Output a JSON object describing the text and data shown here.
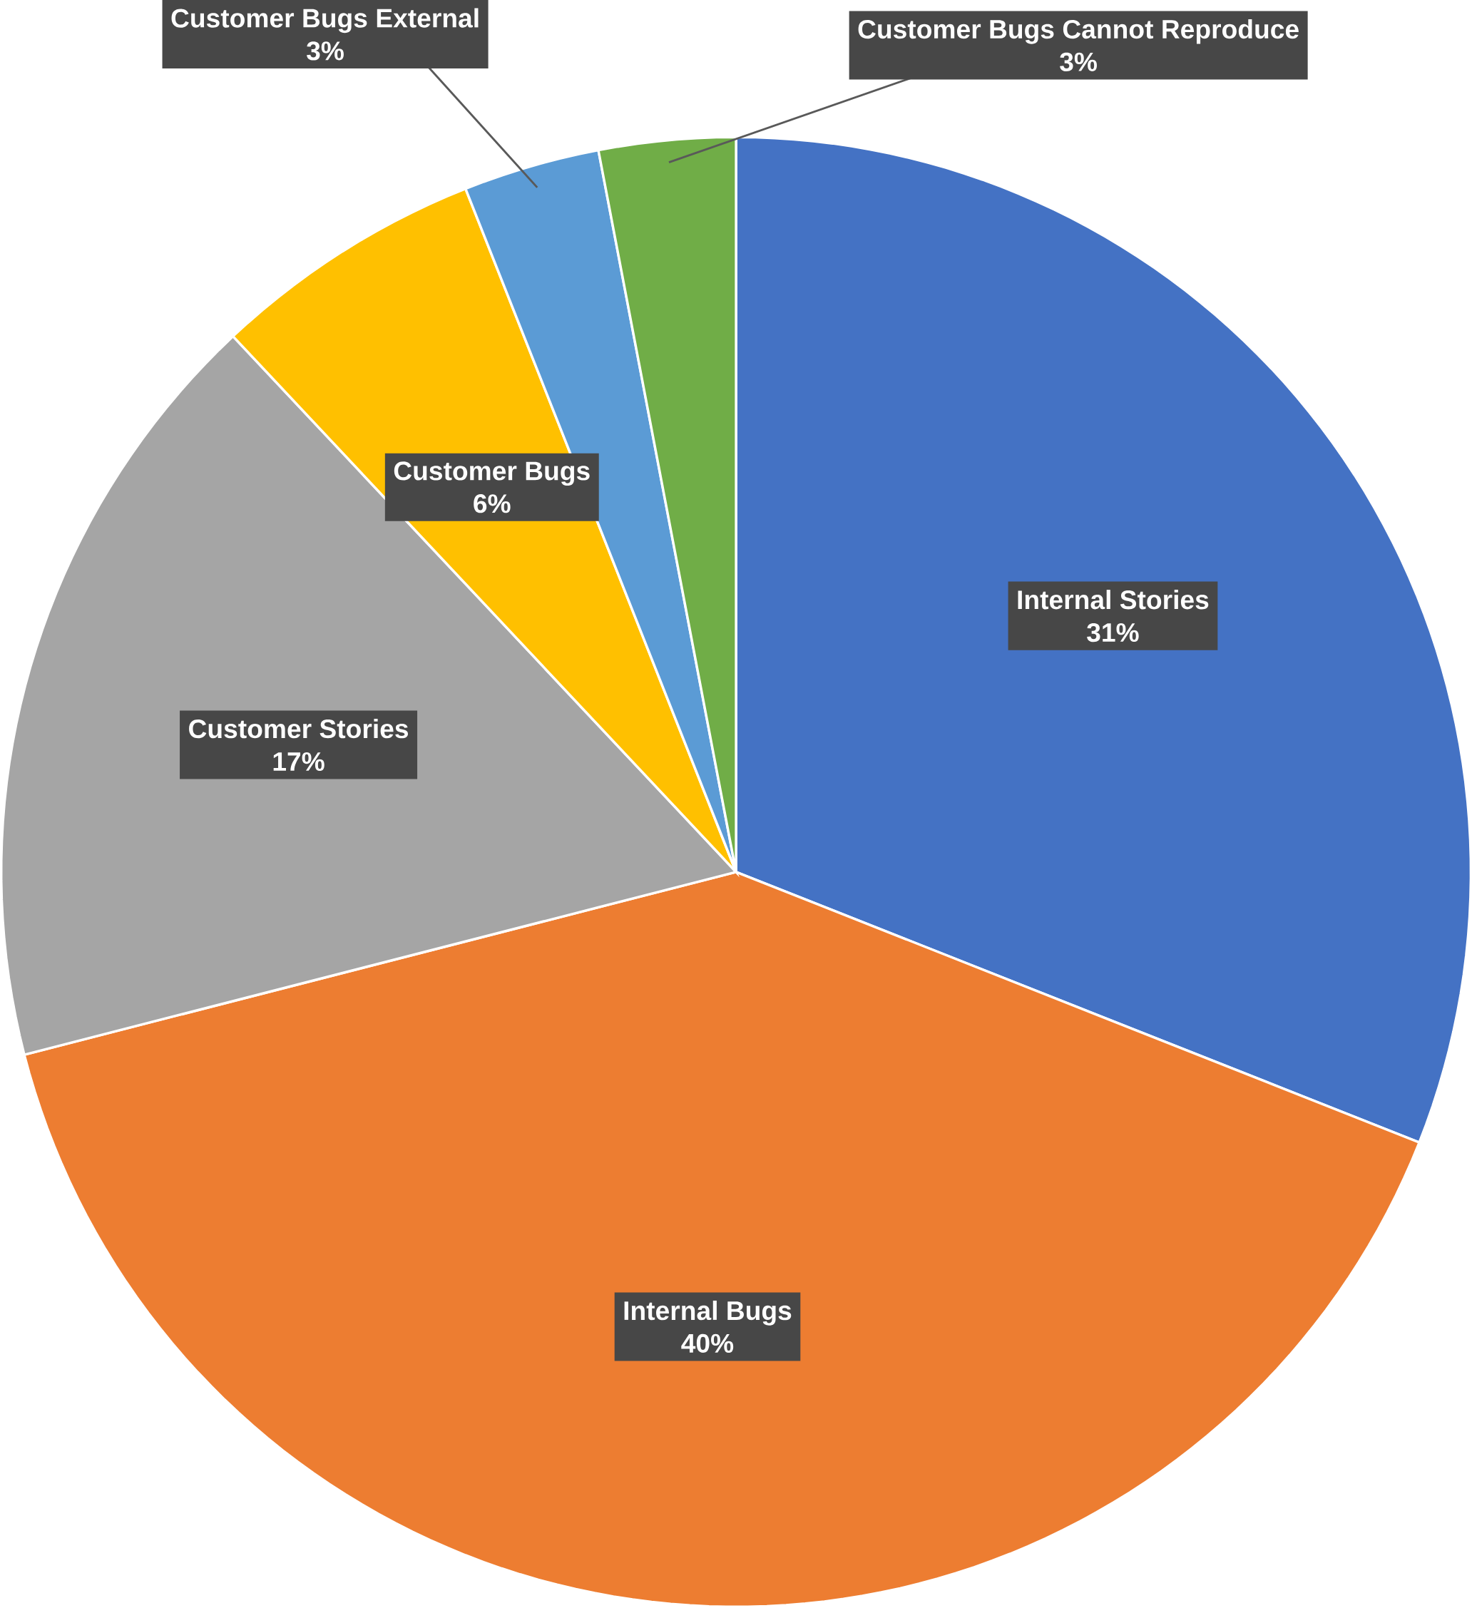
{
  "chart_data": {
    "type": "pie",
    "categories": [
      "Internal Stories",
      "Internal Bugs",
      "Customer Stories",
      "Customer Bugs",
      "Customer Bugs External",
      "Customer Bugs Cannot Reproduce"
    ],
    "values": [
      31,
      40,
      17,
      6,
      3,
      3
    ],
    "colors": [
      "#4472c4",
      "#ed7d31",
      "#a5a5a5",
      "#ffc000",
      "#5b9bd5",
      "#70ad47"
    ],
    "value_labels": [
      "31%",
      "40%",
      "17%",
      "6%",
      "3%",
      "3%"
    ],
    "legend": false
  }
}
